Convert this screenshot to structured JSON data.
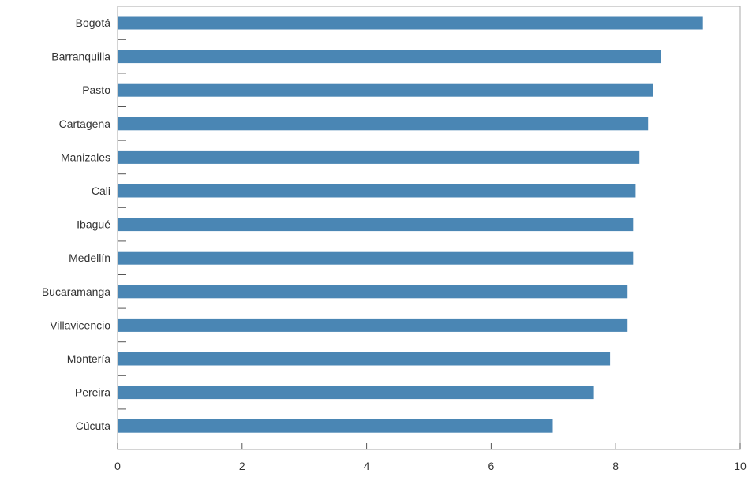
{
  "chart_data": {
    "type": "bar",
    "orientation": "horizontal",
    "categories": [
      "Bogotá",
      "Barranquilla",
      "Pasto",
      "Cartagena",
      "Manizales",
      "Cali",
      "Ibagué",
      "Medellín",
      "Bucaramanga",
      "Villavicencio",
      "Montería",
      "Pereira",
      "Cúcuta"
    ],
    "values": [
      9.4,
      8.73,
      8.6,
      8.52,
      8.38,
      8.32,
      8.28,
      8.28,
      8.19,
      8.19,
      7.91,
      7.65,
      6.99
    ],
    "x_ticks": [
      "0",
      "2",
      "4",
      "6",
      "8",
      "10"
    ],
    "xlim": [
      0,
      10
    ],
    "title": "",
    "xlabel": "",
    "ylabel": "",
    "grid": false,
    "bar_color": "#4a86b4"
  }
}
